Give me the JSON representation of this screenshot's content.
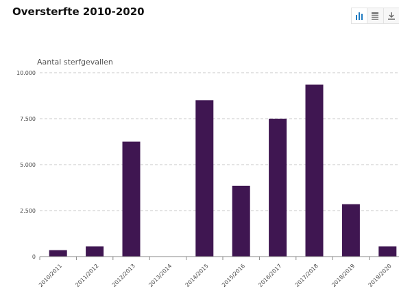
{
  "header": {
    "title": "Oversterfte 2010-2020"
  },
  "toolbar": {
    "buttons": [
      {
        "name": "bar-chart-view-button",
        "icon": "bar-chart-icon",
        "active": true
      },
      {
        "name": "table-view-button",
        "icon": "table-icon",
        "active": false
      },
      {
        "name": "download-button",
        "icon": "download-icon",
        "active": false
      }
    ]
  },
  "colors": {
    "bar": "#3f1651",
    "grid": "#c8c8c8",
    "toolbar_accent": "#1f7bc1"
  },
  "chart_data": {
    "type": "bar",
    "ylabel": "Aantal sterfgevallen",
    "ylim": [
      0,
      10000
    ],
    "yticks": [
      0,
      2500,
      5000,
      7500,
      10000
    ],
    "ytick_labels": [
      "0",
      "2.500",
      "5.000",
      "7.500",
      "10.000"
    ],
    "grid": true,
    "categories": [
      "2010/2011",
      "2011/2012",
      "2012/2013",
      "2013/2014",
      "2014/2015",
      "2015/2016",
      "2016/2017",
      "2017/2018",
      "2018/2019",
      "2019/2020"
    ],
    "values": [
      350,
      550,
      6250,
      0,
      8500,
      3850,
      7500,
      9350,
      2850,
      550
    ]
  }
}
